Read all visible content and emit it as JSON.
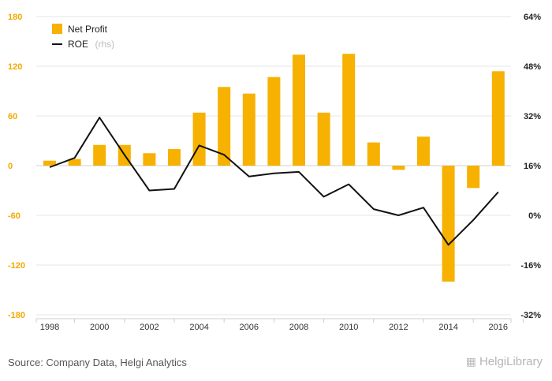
{
  "chart_data": {
    "type": "bar+line",
    "categories": [
      "1998",
      "1999",
      "2000",
      "2001",
      "2002",
      "2003",
      "2004",
      "2005",
      "2006",
      "2007",
      "2008",
      "2009",
      "2010",
      "2011",
      "2012",
      "2013",
      "2014",
      "2015",
      "2016"
    ],
    "x_tick_labels": [
      "1998",
      "2000",
      "2002",
      "2004",
      "2006",
      "2008",
      "2010",
      "2012",
      "2014",
      "2016"
    ],
    "series": [
      {
        "name": "Net Profit",
        "type": "bar",
        "axis": "left",
        "color": "#f7b100",
        "values": [
          6,
          8,
          25,
          25,
          15,
          20,
          64,
          95,
          87,
          107,
          134,
          64,
          135,
          28,
          -5,
          35,
          -140,
          -27,
          114
        ]
      },
      {
        "name": "ROE",
        "name_suffix": "(rhs)",
        "type": "line",
        "axis": "right",
        "color": "#111111",
        "values": [
          15.5,
          18.5,
          31.5,
          19.5,
          8.0,
          8.5,
          22.5,
          19.5,
          12.5,
          13.5,
          14.0,
          6.0,
          10.0,
          2.0,
          0.0,
          2.5,
          -9.5,
          -1.5,
          7.5
        ]
      }
    ],
    "y_left": {
      "min": -180,
      "max": 180,
      "ticks": [
        180,
        120,
        60,
        0,
        -60,
        -120,
        -180
      ]
    },
    "y_right": {
      "min": -32,
      "max": 64,
      "ticks": [
        "64%",
        "48%",
        "32%",
        "16%",
        "0%",
        "-16%",
        "-32%"
      ]
    },
    "grid": true,
    "legend_position": "top-left"
  },
  "source": "Source: Company Data, Helgi Analytics",
  "logo": {
    "text": "HelgiLibrary",
    "icon": "library-icon"
  }
}
